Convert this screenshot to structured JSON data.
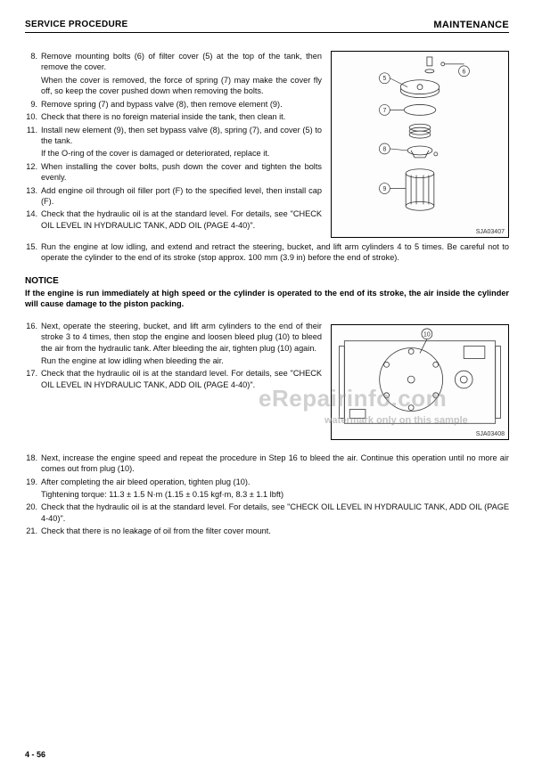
{
  "header": {
    "left": "SERVICE PROCEDURE",
    "right": "MAINTENANCE"
  },
  "steps_a": [
    {
      "n": "8.",
      "t": "Remove mounting bolts (6) of filter cover (5) at the top of the tank, then remove the cover."
    },
    {
      "n": "",
      "t": "When the cover is removed, the force of spring (7) may make the cover fly off, so keep the cover pushed down when removing the bolts."
    },
    {
      "n": "9.",
      "t": "Remove spring (7) and bypass valve (8), then remove element (9)."
    },
    {
      "n": "10.",
      "t": "Check that there is no foreign material inside the tank, then clean it."
    },
    {
      "n": "11.",
      "t": "Install new element (9), then set bypass valve (8), spring (7), and cover (5) to the tank."
    },
    {
      "n": "",
      "t": "If the O-ring of the cover is damaged or deteriorated, replace it."
    },
    {
      "n": "12.",
      "t": "When installing the cover bolts, push down the cover and tighten the bolts evenly."
    },
    {
      "n": "13.",
      "t": "Add engine oil through oil filler port (F) to the specified level, then install cap (F)."
    },
    {
      "n": "14.",
      "t": "Check that the hydraulic oil is at the standard level. For details, see \"CHECK OIL LEVEL IN HYDRAULIC TANK, ADD OIL (PAGE 4-40)\"."
    }
  ],
  "step15": {
    "n": "15.",
    "t": "Run the engine at low idling, and extend and retract the steering, bucket, and lift arm cylinders 4 to 5 times. Be careful not to operate the cylinder to the end of its stroke (stop approx. 100 mm (3.9 in) before the end of stroke)."
  },
  "notice": {
    "title": "NOTICE",
    "body": "If the engine is run immediately at high speed or the cylinder is operated to the end of its stroke, the air inside the cylinder will cause damage to the piston packing."
  },
  "steps_b": [
    {
      "n": "16.",
      "t": "Next, operate the steering, bucket, and lift arm cylinders to the end of their stroke 3 to 4 times, then stop the engine and loosen bleed plug (10) to bleed the air from the hydraulic tank. After bleeding the air, tighten plug (10) again."
    },
    {
      "n": "",
      "t": "Run the engine at low idling when bleeding the air."
    },
    {
      "n": "17.",
      "t": "Check that the hydraulic oil is at the standard level. For details, see \"CHECK OIL LEVEL IN HYDRAULIC TANK, ADD OIL (PAGE 4-40)\"."
    }
  ],
  "steps_c": [
    {
      "n": "18.",
      "t": "Next, increase the engine speed and repeat the procedure in Step 16 to bleed the air. Continue this operation until no more air comes out from plug (10)."
    },
    {
      "n": "19.",
      "t": "After completing the air bleed operation, tighten plug (10)."
    },
    {
      "n": "",
      "t": "Tightening torque: 11.3 ± 1.5 N·m (1.15 ± 0.15 kgf·m, 8.3 ± 1.1 lbft)"
    },
    {
      "n": "20.",
      "t": "Check that the hydraulic oil is at the standard level. For details, see \"CHECK OIL LEVEL IN HYDRAULIC TANK, ADD OIL (PAGE 4-40)\"."
    },
    {
      "n": "21.",
      "t": "Check that there is no leakage of oil from the filter cover mount."
    }
  ],
  "figures": {
    "fig1_caption": "SJA03407",
    "fig2_caption": "SJA03408",
    "callouts": [
      "5",
      "6",
      "7",
      "8",
      "9"
    ]
  },
  "watermark": {
    "big": "eRepairinfo.com",
    "small": "watermark only on this sample"
  },
  "page_number": "4 - 56",
  "colors": {
    "text": "#111111",
    "border": "#000000",
    "wm": "rgba(150,150,150,0.45)"
  }
}
